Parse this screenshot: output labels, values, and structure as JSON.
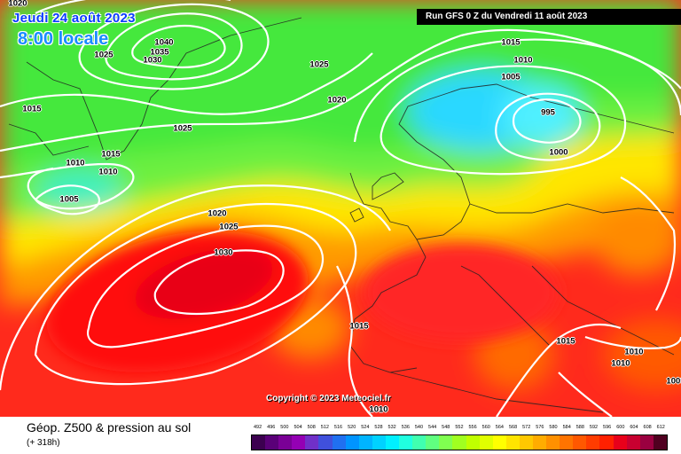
{
  "header": {
    "date": "Jeudi 24 août 2023",
    "time": "8:00 locale",
    "run": "Run GFS 0 Z du Vendredi 11 août 2023"
  },
  "copyright": "Copyright © 2023 Meteociel.fr",
  "footer": {
    "title": "Géop. Z500 & pression au sol",
    "subtitle": "(+ 318h)"
  },
  "isobars": [
    "1020",
    "1040",
    "1035",
    "1030",
    "1025",
    "1015",
    "1010",
    "1005",
    "1025",
    "1020",
    "1015",
    "1010",
    "1005",
    "995",
    "1000",
    "1025",
    "1015",
    "1010",
    "1010",
    "1005",
    "1020",
    "1025",
    "1030",
    "1015",
    "1015",
    "1010",
    "1010"
  ],
  "colors": {
    "low_z500": "#3cf0ff",
    "high_z500": "#e8001a",
    "isobar": "#ffffff"
  },
  "scale": {
    "ticks": [
      "492",
      "496",
      "500",
      "504",
      "508",
      "512",
      "516",
      "520",
      "524",
      "528",
      "532",
      "536",
      "540",
      "544",
      "548",
      "552",
      "556",
      "560",
      "564",
      "568",
      "572",
      "576",
      "580",
      "584",
      "588",
      "592",
      "596",
      "600",
      "604",
      "608",
      "612"
    ],
    "colors": [
      "#3c0050",
      "#5a0078",
      "#7a0096",
      "#9400b4",
      "#7030c8",
      "#4050dc",
      "#2070f0",
      "#0094ff",
      "#00b4ff",
      "#00d2ff",
      "#00f0ff",
      "#20ffe0",
      "#40ffb0",
      "#60ff80",
      "#80ff50",
      "#a0ff20",
      "#c0ff00",
      "#e0ff00",
      "#ffff00",
      "#ffe400",
      "#ffc800",
      "#ffac00",
      "#ff9000",
      "#ff7400",
      "#ff5800",
      "#ff3c00",
      "#ff2000",
      "#e8001a",
      "#c80030",
      "#9a0040",
      "#500020"
    ]
  }
}
